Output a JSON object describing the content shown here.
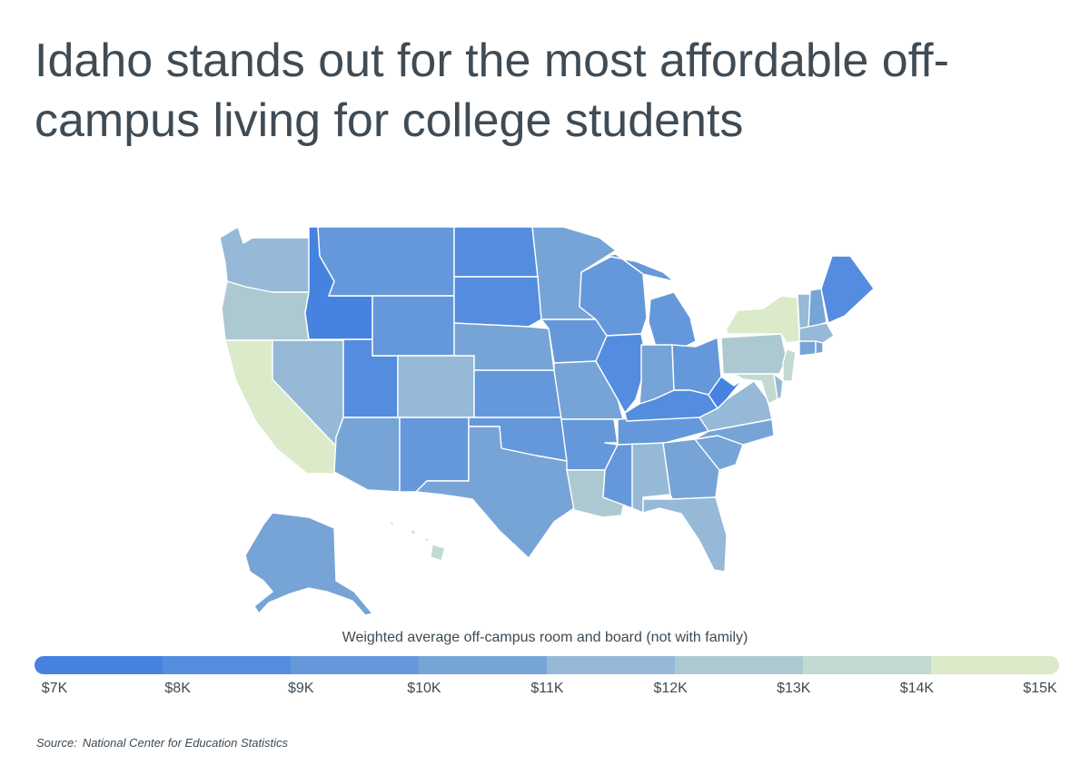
{
  "title": "Idaho stands out for the most affordable off-campus living for college students",
  "legend": {
    "title": "Weighted average off-campus room and board (not with family)",
    "labels": [
      "$7K",
      "$8K",
      "$9K",
      "$10K",
      "$11K",
      "$12K",
      "$13K",
      "$14K",
      "$15K"
    ],
    "colors": [
      "#4682e0",
      "#548ddf",
      "#6598da",
      "#77a4d6",
      "#95b9d7",
      "#acc9d2",
      "#c3dad1",
      "#dbeac9"
    ]
  },
  "source": {
    "label": "Source:",
    "text": "National Center for Education Statistics"
  },
  "map_data": {
    "type": "choropleth",
    "region": "United States",
    "bins": [
      "$7K-$8K",
      "$8K-$9K",
      "$9K-$10K",
      "$10K-$11K",
      "$11K-$12K",
      "$12K-$13K",
      "$13K-$14K",
      "$14K-$15K"
    ],
    "states": [
      {
        "state": "Idaho",
        "bin": 0
      },
      {
        "state": "West Virginia",
        "bin": 0
      },
      {
        "state": "Illinois",
        "bin": 1
      },
      {
        "state": "Utah",
        "bin": 1
      },
      {
        "state": "North Dakota",
        "bin": 1
      },
      {
        "state": "South Dakota",
        "bin": 1
      },
      {
        "state": "Maine",
        "bin": 1
      },
      {
        "state": "Kentucky",
        "bin": 1
      },
      {
        "state": "Montana",
        "bin": 2
      },
      {
        "state": "Wyoming",
        "bin": 2
      },
      {
        "state": "New Mexico",
        "bin": 2
      },
      {
        "state": "Kansas",
        "bin": 2
      },
      {
        "state": "Oklahoma",
        "bin": 2
      },
      {
        "state": "Iowa",
        "bin": 2
      },
      {
        "state": "Wisconsin",
        "bin": 2
      },
      {
        "state": "Michigan",
        "bin": 2
      },
      {
        "state": "Mississippi",
        "bin": 2
      },
      {
        "state": "Arkansas",
        "bin": 2
      },
      {
        "state": "Tennessee",
        "bin": 2
      },
      {
        "state": "Ohio",
        "bin": 2
      },
      {
        "state": "Minnesota",
        "bin": 3
      },
      {
        "state": "Nebraska",
        "bin": 3
      },
      {
        "state": "Texas",
        "bin": 3
      },
      {
        "state": "Arizona",
        "bin": 3
      },
      {
        "state": "Missouri",
        "bin": 3
      },
      {
        "state": "Indiana",
        "bin": 3
      },
      {
        "state": "Georgia",
        "bin": 3
      },
      {
        "state": "South Carolina",
        "bin": 3
      },
      {
        "state": "North Carolina",
        "bin": 3
      },
      {
        "state": "Alaska",
        "bin": 3
      },
      {
        "state": "New Hampshire",
        "bin": 3
      },
      {
        "state": "Connecticut",
        "bin": 3
      },
      {
        "state": "Rhode Island",
        "bin": 3
      },
      {
        "state": "Washington",
        "bin": 4
      },
      {
        "state": "Nevada",
        "bin": 4
      },
      {
        "state": "Colorado",
        "bin": 4
      },
      {
        "state": "Alabama",
        "bin": 4
      },
      {
        "state": "Florida",
        "bin": 4
      },
      {
        "state": "Virginia",
        "bin": 4
      },
      {
        "state": "Vermont",
        "bin": 4
      },
      {
        "state": "Delaware",
        "bin": 4
      },
      {
        "state": "Massachusetts",
        "bin": 4
      },
      {
        "state": "Oregon",
        "bin": 5
      },
      {
        "state": "Louisiana",
        "bin": 5
      },
      {
        "state": "Pennsylvania",
        "bin": 5
      },
      {
        "state": "New Jersey",
        "bin": 6
      },
      {
        "state": "Maryland",
        "bin": 6
      },
      {
        "state": "Hawaii",
        "bin": 6
      },
      {
        "state": "California",
        "bin": 7
      },
      {
        "state": "New York",
        "bin": 7
      }
    ]
  }
}
